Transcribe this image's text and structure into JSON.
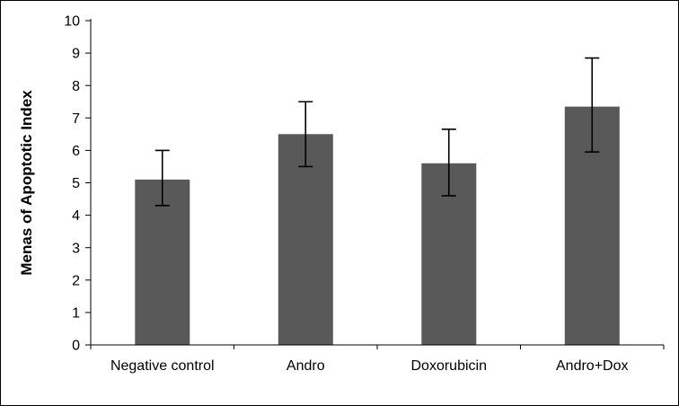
{
  "chart_data": {
    "type": "bar",
    "title": "",
    "xlabel": "",
    "ylabel": "Menas of Apoptotic Index",
    "categories": [
      "Negative control",
      "Andro",
      "Doxorubicin",
      "Andro+Dox"
    ],
    "values": [
      5.1,
      6.5,
      5.6,
      7.35
    ],
    "error_high": [
      6.0,
      7.5,
      6.65,
      8.85
    ],
    "error_low": [
      4.3,
      5.5,
      4.6,
      5.95
    ],
    "ylim": [
      0,
      10
    ],
    "ytick_step": 1,
    "ytick_labels": [
      "0",
      "1",
      "2",
      "3",
      "4",
      "5",
      "6",
      "7",
      "8",
      "9",
      "10"
    ],
    "grid": false,
    "legend": false,
    "bar_color": "#595959",
    "error_bar_color": "#000000",
    "axis_color": "#000000",
    "background_color": "#ffffff"
  }
}
